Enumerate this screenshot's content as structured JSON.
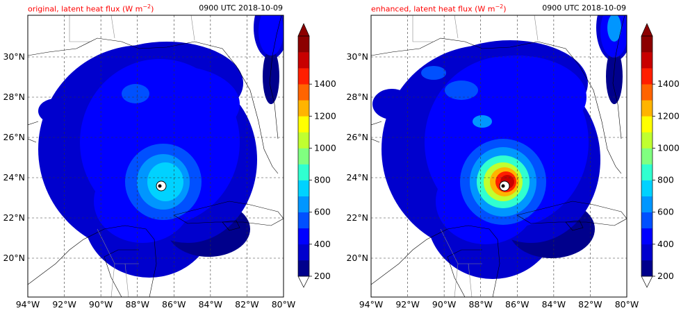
{
  "panels": [
    {
      "title": "original, latent heat flux (W m",
      "title_sup": "−2",
      "title_close": ")",
      "timestamp": "0900 UTC 2018-10-09",
      "variant": "original"
    },
    {
      "title": "enhanced, latent heat flux (W m",
      "title_sup": "−2",
      "title_close": ")",
      "timestamp": "0900 UTC 2018-10-09",
      "variant": "enhanced"
    }
  ],
  "map": {
    "lon_ticks": [
      "94°W",
      "92°W",
      "90°W",
      "88°W",
      "86°W",
      "84°W",
      "82°W",
      "80°W"
    ],
    "lat_ticks": [
      "20°N",
      "22°N",
      "24°N",
      "26°N",
      "28°N",
      "30°N"
    ]
  },
  "colorbar": {
    "ticks": [
      "200",
      "400",
      "600",
      "800",
      "1000",
      "1200",
      "1400"
    ],
    "colors": [
      "#00008c",
      "#0000cd",
      "#0000ff",
      "#0050ff",
      "#0096ff",
      "#00d2ff",
      "#30ffd0",
      "#80ff80",
      "#c0ff30",
      "#ffff00",
      "#ffb400",
      "#ff6400",
      "#ff1e00",
      "#c80000",
      "#8c0000"
    ],
    "extend_min_color": "#ffffff",
    "extend_max_color": "#8c0000"
  }
}
